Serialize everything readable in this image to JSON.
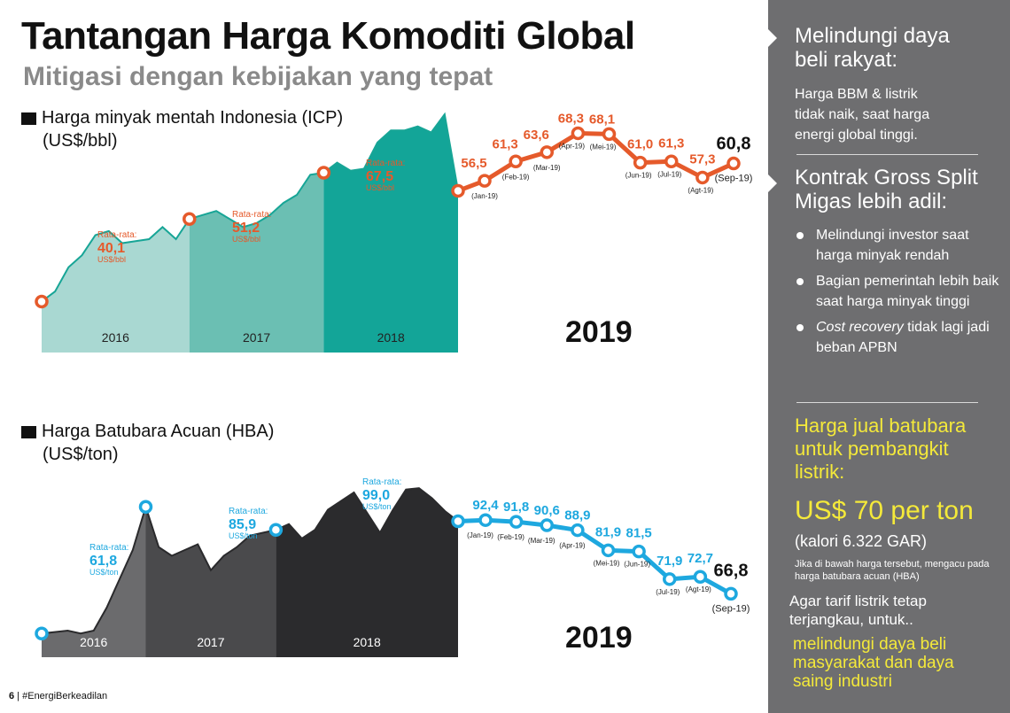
{
  "header": {
    "title": "Tantangan Harga Komoditi Global",
    "subtitle": "Mitigasi dengan kebijakan yang tepat"
  },
  "footer": {
    "page": "6",
    "sep": " | ",
    "hashtag": "#EnergiBerkeadilan"
  },
  "colors": {
    "icp_accent": "#e55a2b",
    "icp_2016": "#a9d8d2",
    "icp_2017": "#6bbfb3",
    "icp_2018": "#13a598",
    "hba_accent": "#1ea8df",
    "hba_2016": "#6b6b6d",
    "hba_2017": "#4a4a4c",
    "hba_2018": "#2b2b2d",
    "panel_bg": "#6e6e70",
    "highlight": "#f4e93a"
  },
  "chart_data": [
    {
      "type": "line",
      "title": "Harga minyak mentah Indonesia (ICP)",
      "unit": "(US$/bbl)",
      "ylabel": "US$/bbl",
      "ylim": [
        20,
        75
      ],
      "history": {
        "type": "area",
        "values": [
          26.5,
          29,
          35,
          38,
          43,
          44,
          41,
          41.5,
          42,
          45,
          42,
          47,
          48,
          49,
          47,
          45,
          46,
          48,
          51,
          53,
          58,
          58.5,
          61,
          59,
          59.5,
          66,
          69,
          69,
          70,
          68.5,
          73,
          54
        ],
        "period_labels": [
          "2016",
          "2017",
          "2018"
        ],
        "averages": [
          {
            "label": "Rata-rata:",
            "value": "40,1",
            "unit": "US$/bbl"
          },
          {
            "label": "Rata-rata:",
            "value": "51,2",
            "unit": "US$/bbl"
          },
          {
            "label": "Rata-rata:",
            "value": "67,5",
            "unit": "US$/bbl"
          }
        ]
      },
      "year_label": "2019",
      "categories": [
        "Jan-19",
        "Feb-19",
        "Mar-19",
        "Apr-19",
        "Mei-19",
        "Jun-19",
        "Jul-19",
        "Agt-19",
        "Sep-19"
      ],
      "month_labels": [
        "(Jan-19)",
        "(Feb-19)",
        "(Mar-19)",
        "(Apr-19)",
        "(Mei-19)",
        "(Jun-19)",
        "(Jul-19)",
        "(Agt-19)",
        "(Sep-19)"
      ],
      "value_labels": [
        "56,5",
        "61,3",
        "63,6",
        "68,3",
        "68,1",
        "61,0",
        "61,3",
        "57,3",
        "60,8"
      ],
      "values": [
        56.5,
        61.3,
        63.6,
        68.3,
        68.1,
        61.0,
        61.3,
        57.3,
        60.8
      ]
    },
    {
      "type": "line",
      "title": "Harga Batubara Acuan (HBA)",
      "unit": "(US$/ton)",
      "ylabel": "US$/ton",
      "ylim": [
        50,
        110
      ],
      "history": {
        "type": "area",
        "values": [
          53,
          53.5,
          54,
          53,
          54,
          62,
          72,
          82,
          97,
          83,
          80,
          82,
          84,
          75,
          80,
          83,
          87,
          88,
          89,
          91,
          86,
          89,
          96,
          99,
          102,
          95,
          88,
          96,
          103,
          103.5,
          100,
          95.5,
          92
        ],
        "period_labels": [
          "2016",
          "2017",
          "2018"
        ],
        "averages": [
          {
            "label": "Rata-rata:",
            "value": "61,8",
            "unit": "US$/ton"
          },
          {
            "label": "Rata-rata:",
            "value": "85,9",
            "unit": "US$/ton"
          },
          {
            "label": "Rata-rata:",
            "value": "99,0",
            "unit": "US$/ton"
          }
        ]
      },
      "year_label": "2019",
      "categories": [
        "Jan-19",
        "Feb-19",
        "Mar-19",
        "Apr-19",
        "Mei-19",
        "Jun-19",
        "Jul-19",
        "Agt-19",
        "Sep-19"
      ],
      "month_labels": [
        "(Jan-19)",
        "(Feb-19)",
        "(Mar-19)",
        "(Apr-19)",
        "(Mei-19)",
        "(Jun-19)",
        "(Jul-19)",
        "(Agt-19)",
        "(Sep-19)"
      ],
      "value_labels": [
        "92,4",
        "91,8",
        "90,6",
        "88,9",
        "81,9",
        "81,5",
        "71,9",
        "72,7",
        "66,8"
      ],
      "values": [
        92.4,
        91.8,
        90.6,
        88.9,
        81.9,
        81.5,
        71.9,
        72.7,
        66.8
      ]
    }
  ],
  "panel": {
    "s1_head_1": "Melindungi daya",
    "s1_head_2": "beli rakyat:",
    "s1_body_1": "Harga BBM & listrik",
    "s1_body_2": "tidak naik, saat harga",
    "s1_body_3": "energi global tinggi.",
    "s2_head_1": "Kontrak Gross Split",
    "s2_head_2": "Migas lebih adil:",
    "b1": "Melindungi investor saat harga minyak rendah",
    "b2": "Bagian pemerintah lebih baik saat harga minyak tinggi",
    "b3_em": "Cost recovery",
    "b3_rest": " tidak lagi jadi beban APBN",
    "s3_head_1": "Harga jual batubara",
    "s3_head_2": "untuk pembangkit",
    "s3_head_3": "listrik:",
    "price": "US$ 70 per ton",
    "calorie": "(kalori 6.322 GAR)",
    "note": "Jika di bawah harga tersebut, mengacu pada harga batubara acuan (HBA)",
    "aim_1": "Agar tarif listrik tetap",
    "aim_2": "terjangkau, untuk..",
    "goal_1": "melindungi daya beli",
    "goal_2": "masyarakat dan daya",
    "goal_3": "saing industri"
  }
}
